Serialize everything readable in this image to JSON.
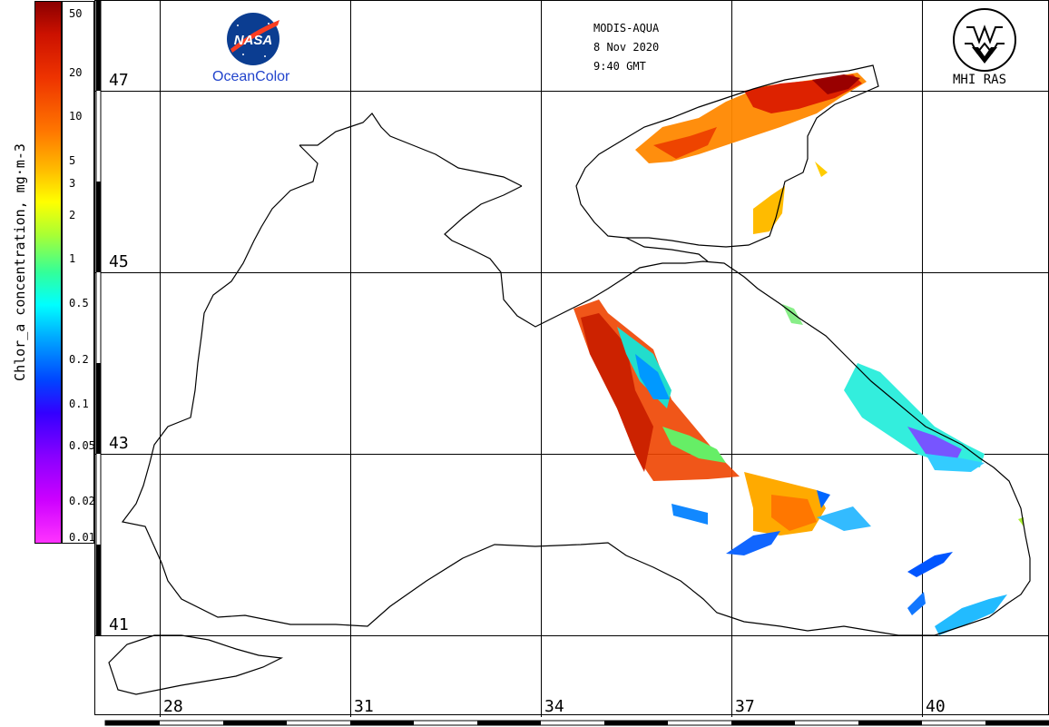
{
  "header": {
    "sensor": "MODIS-AQUA",
    "date": "8 Nov 2020",
    "time": "9:40 GMT"
  },
  "logos": {
    "nasa_text": "NASA",
    "oceancolor": "OceanColor",
    "mhi": "MHI RAS"
  },
  "colorbar": {
    "title": "Chlor_a concentration, mg·m-3",
    "ticks": [
      "50",
      "20",
      "10",
      "5",
      "3",
      "2",
      "1",
      "0.5",
      "0.2",
      "0.1",
      "0.05",
      "0.02",
      "0.01"
    ],
    "scale": "log"
  },
  "map": {
    "latitude_labels": [
      "47",
      "45",
      "43",
      "41"
    ],
    "longitude_labels": [
      "28",
      "31",
      "34",
      "37",
      "40"
    ]
  },
  "colors": {
    "high": "#8b0000",
    "mid": "#ffff00",
    "low": "#0044ff",
    "min": "#ff33ff",
    "logo_blue": "#2244cc"
  }
}
